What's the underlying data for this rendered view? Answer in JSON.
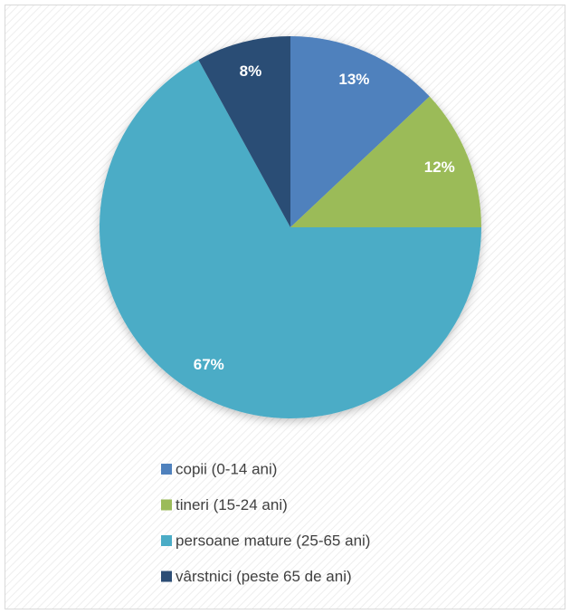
{
  "chart_data": {
    "type": "pie",
    "categories": [
      "copii (0-14 ani)",
      "tineri (15-24 ani)",
      "persoane mature (25-65 ani)",
      "vârstnici (peste 65 de ani)"
    ],
    "values": [
      13,
      12,
      67,
      8
    ],
    "value_labels": [
      "13%",
      "12%",
      "67%",
      "8%"
    ],
    "colors": [
      "#4f81bd",
      "#9bbb59",
      "#4bacc6",
      "#2c4d75"
    ],
    "legend": "bottom"
  }
}
